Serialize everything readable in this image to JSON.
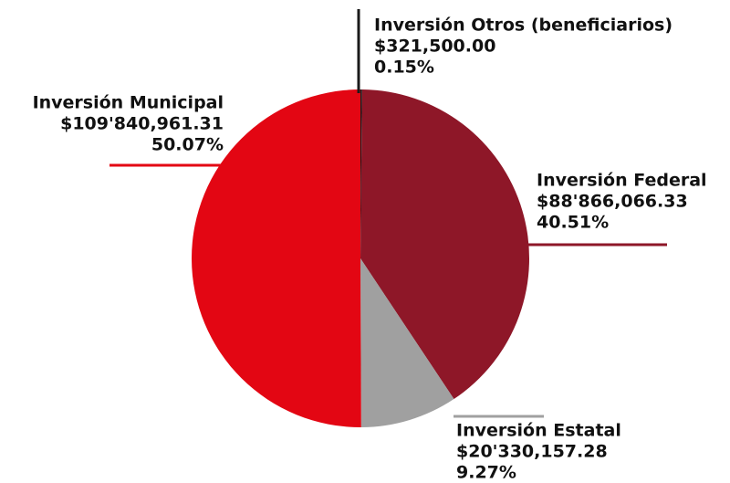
{
  "chart_data": {
    "type": "pie",
    "categories": [
      "Inversión Otros (beneficiarios)",
      "Inversión Federal",
      "Inversión Estatal",
      "Inversión Municipal"
    ],
    "amount_labels": [
      "$321,500.00",
      "$88'866,066.33",
      "$20'330,157.28",
      "$109'840,961.31"
    ],
    "values": [
      0.15,
      40.51,
      9.27,
      50.07
    ],
    "value_labels": [
      "0.15%",
      "40.51%",
      "9.27%",
      "50.07%"
    ],
    "colors": [
      "#1a1a1a",
      "#8e1728",
      "#a0a0a0",
      "#e30613"
    ]
  }
}
